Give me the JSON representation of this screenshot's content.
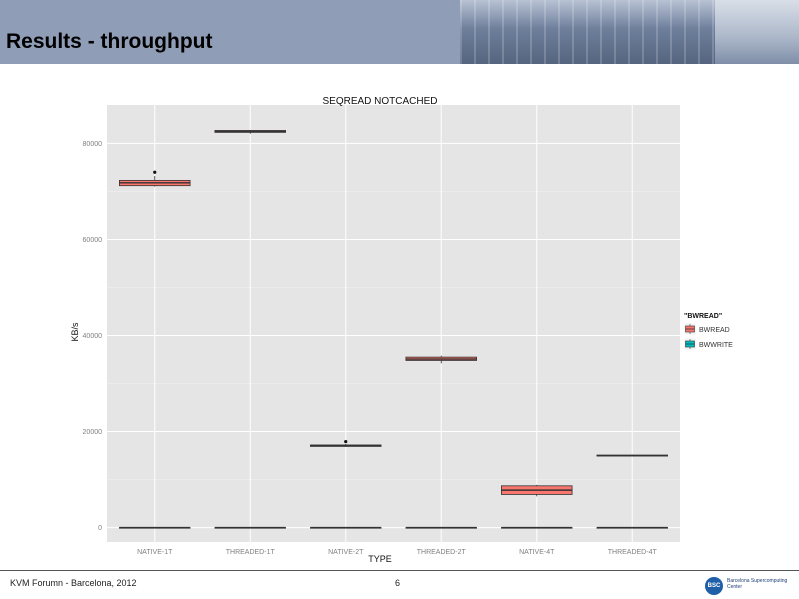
{
  "slide": {
    "title": "Results - throughput",
    "footer_left": "KVM Forumn - Barcelona, 2012",
    "page_number": "6",
    "logo_text": "BSC",
    "logo_name": "Barcelona Supercomputing Center"
  },
  "chart_data": {
    "type": "box",
    "title": "SEQREAD NOTCACHED",
    "xlabel": "TYPE",
    "ylabel": "KB/s",
    "ylim": [
      -3000,
      88000
    ],
    "yticks": [
      0,
      20000,
      40000,
      60000,
      80000
    ],
    "grid": true,
    "categories": [
      "NATIVE-1T",
      "THREADED-1T",
      "NATIVE-2T",
      "THREADED-2T",
      "NATIVE-4T",
      "THREADED-4T"
    ],
    "legend": {
      "title": "\"BWREAD\"",
      "position": "right",
      "entries": [
        {
          "name": "BWREAD",
          "color": "#f8766d"
        },
        {
          "name": "BWWRITE",
          "color": "#00bfc4"
        }
      ]
    },
    "series": [
      {
        "name": "BWREAD",
        "color": "#f8766d",
        "boxes": [
          {
            "min": 71000,
            "q1": 71200,
            "median": 71800,
            "q3": 72300,
            "max": 73200,
            "outliers": [
              74000
            ]
          },
          {
            "min": 82000,
            "q1": 82300,
            "median": 82500,
            "q3": 82700,
            "max": 82800,
            "outliers": []
          },
          {
            "min": 16800,
            "q1": 16900,
            "median": 17100,
            "q3": 17200,
            "max": 17400,
            "outliers": [
              17900
            ]
          },
          {
            "min": 34200,
            "q1": 34800,
            "median": 35100,
            "q3": 35500,
            "max": 35800,
            "outliers": []
          },
          {
            "min": 6500,
            "q1": 6900,
            "median": 7800,
            "q3": 8700,
            "max": 8900,
            "outliers": []
          },
          {
            "min": 14800,
            "q1": 14900,
            "median": 15000,
            "q3": 15100,
            "max": 15200,
            "outliers": []
          }
        ]
      },
      {
        "name": "BWWRITE",
        "color": "#00bfc4",
        "boxes": [
          {
            "min": 0,
            "q1": 0,
            "median": 0,
            "q3": 0,
            "max": 0,
            "outliers": []
          },
          {
            "min": 0,
            "q1": 0,
            "median": 0,
            "q3": 0,
            "max": 0,
            "outliers": []
          },
          {
            "min": 0,
            "q1": 0,
            "median": 0,
            "q3": 0,
            "max": 0,
            "outliers": []
          },
          {
            "min": 0,
            "q1": 0,
            "median": 0,
            "q3": 0,
            "max": 0,
            "outliers": []
          },
          {
            "min": 0,
            "q1": 0,
            "median": 0,
            "q3": 0,
            "max": 0,
            "outliers": []
          },
          {
            "min": 0,
            "q1": 0,
            "median": 0,
            "q3": 0,
            "max": 0,
            "outliers": []
          }
        ]
      }
    ]
  }
}
